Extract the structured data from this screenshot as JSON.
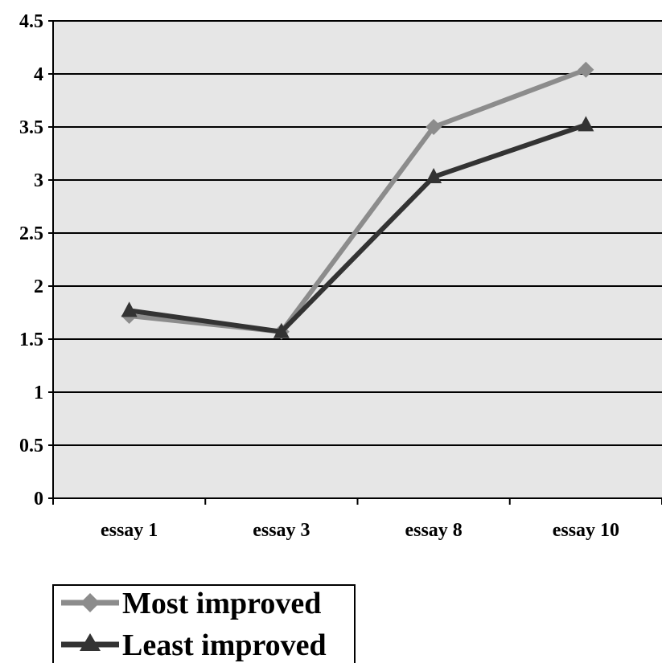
{
  "chart_data": {
    "type": "line",
    "title": "",
    "xlabel": "",
    "ylabel": "",
    "categories": [
      "essay 1",
      "essay 3",
      "essay 8",
      "essay 10"
    ],
    "ylim": [
      0,
      4.5
    ],
    "y_ticks": [
      "0",
      "0.5",
      "1",
      "1.5",
      "2",
      "2.5",
      "3",
      "3.5",
      "4",
      "4.5"
    ],
    "grid": "horizontal",
    "legend_placement": "bottom-left",
    "series": [
      {
        "name": "Most improved",
        "values": [
          1.72,
          1.57,
          3.5,
          4.04
        ],
        "color": "#8c8c8c",
        "marker": "diamond"
      },
      {
        "name": "Least improved",
        "values": [
          1.77,
          1.57,
          3.03,
          3.52
        ],
        "color": "#333333",
        "marker": "triangle"
      }
    ],
    "plot_background": "#e6e6e6"
  }
}
